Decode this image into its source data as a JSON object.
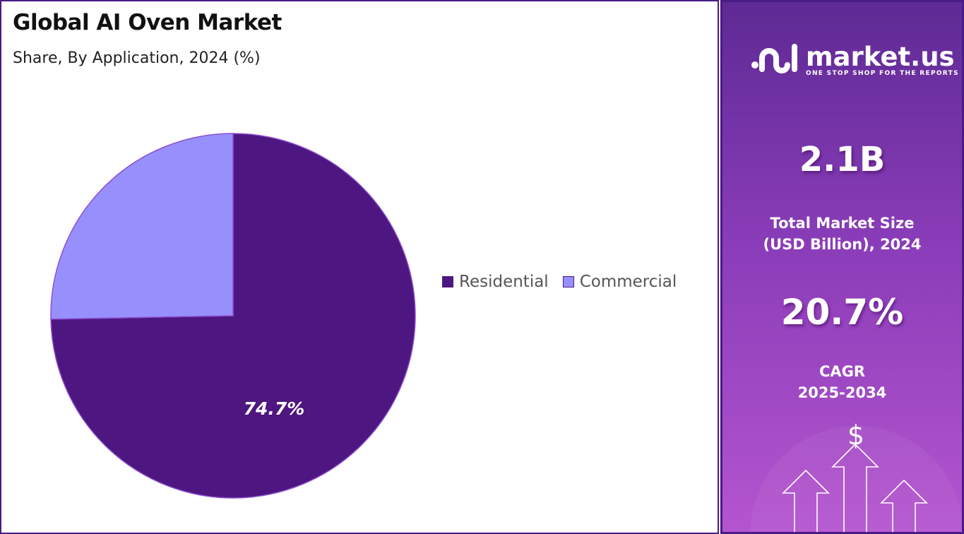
{
  "title": "Global AI Oven Market",
  "subtitle": "Share, By Application, 2024 (%)",
  "chart_data": {
    "type": "pie",
    "title": "Global AI Oven Market",
    "subtitle": "Share, By Application, 2024 (%)",
    "categories": [
      "Residential",
      "Commercial"
    ],
    "values": [
      74.7,
      25.3
    ],
    "labels": [
      "74.7%",
      ""
    ],
    "colors": [
      "#4e1680",
      "#9790fc"
    ],
    "legend_position": "right"
  },
  "sidebar": {
    "brand": "market.us",
    "tagline": "ONE STOP SHOP FOR THE REPORTS",
    "market_size": "2.1B",
    "market_size_label_1": "Total Market Size",
    "market_size_label_2": "(USD Billion), 2024",
    "cagr": "20.7%",
    "cagr_label_1": "CAGR",
    "cagr_label_2": "2025-2034",
    "dollar": "$"
  }
}
